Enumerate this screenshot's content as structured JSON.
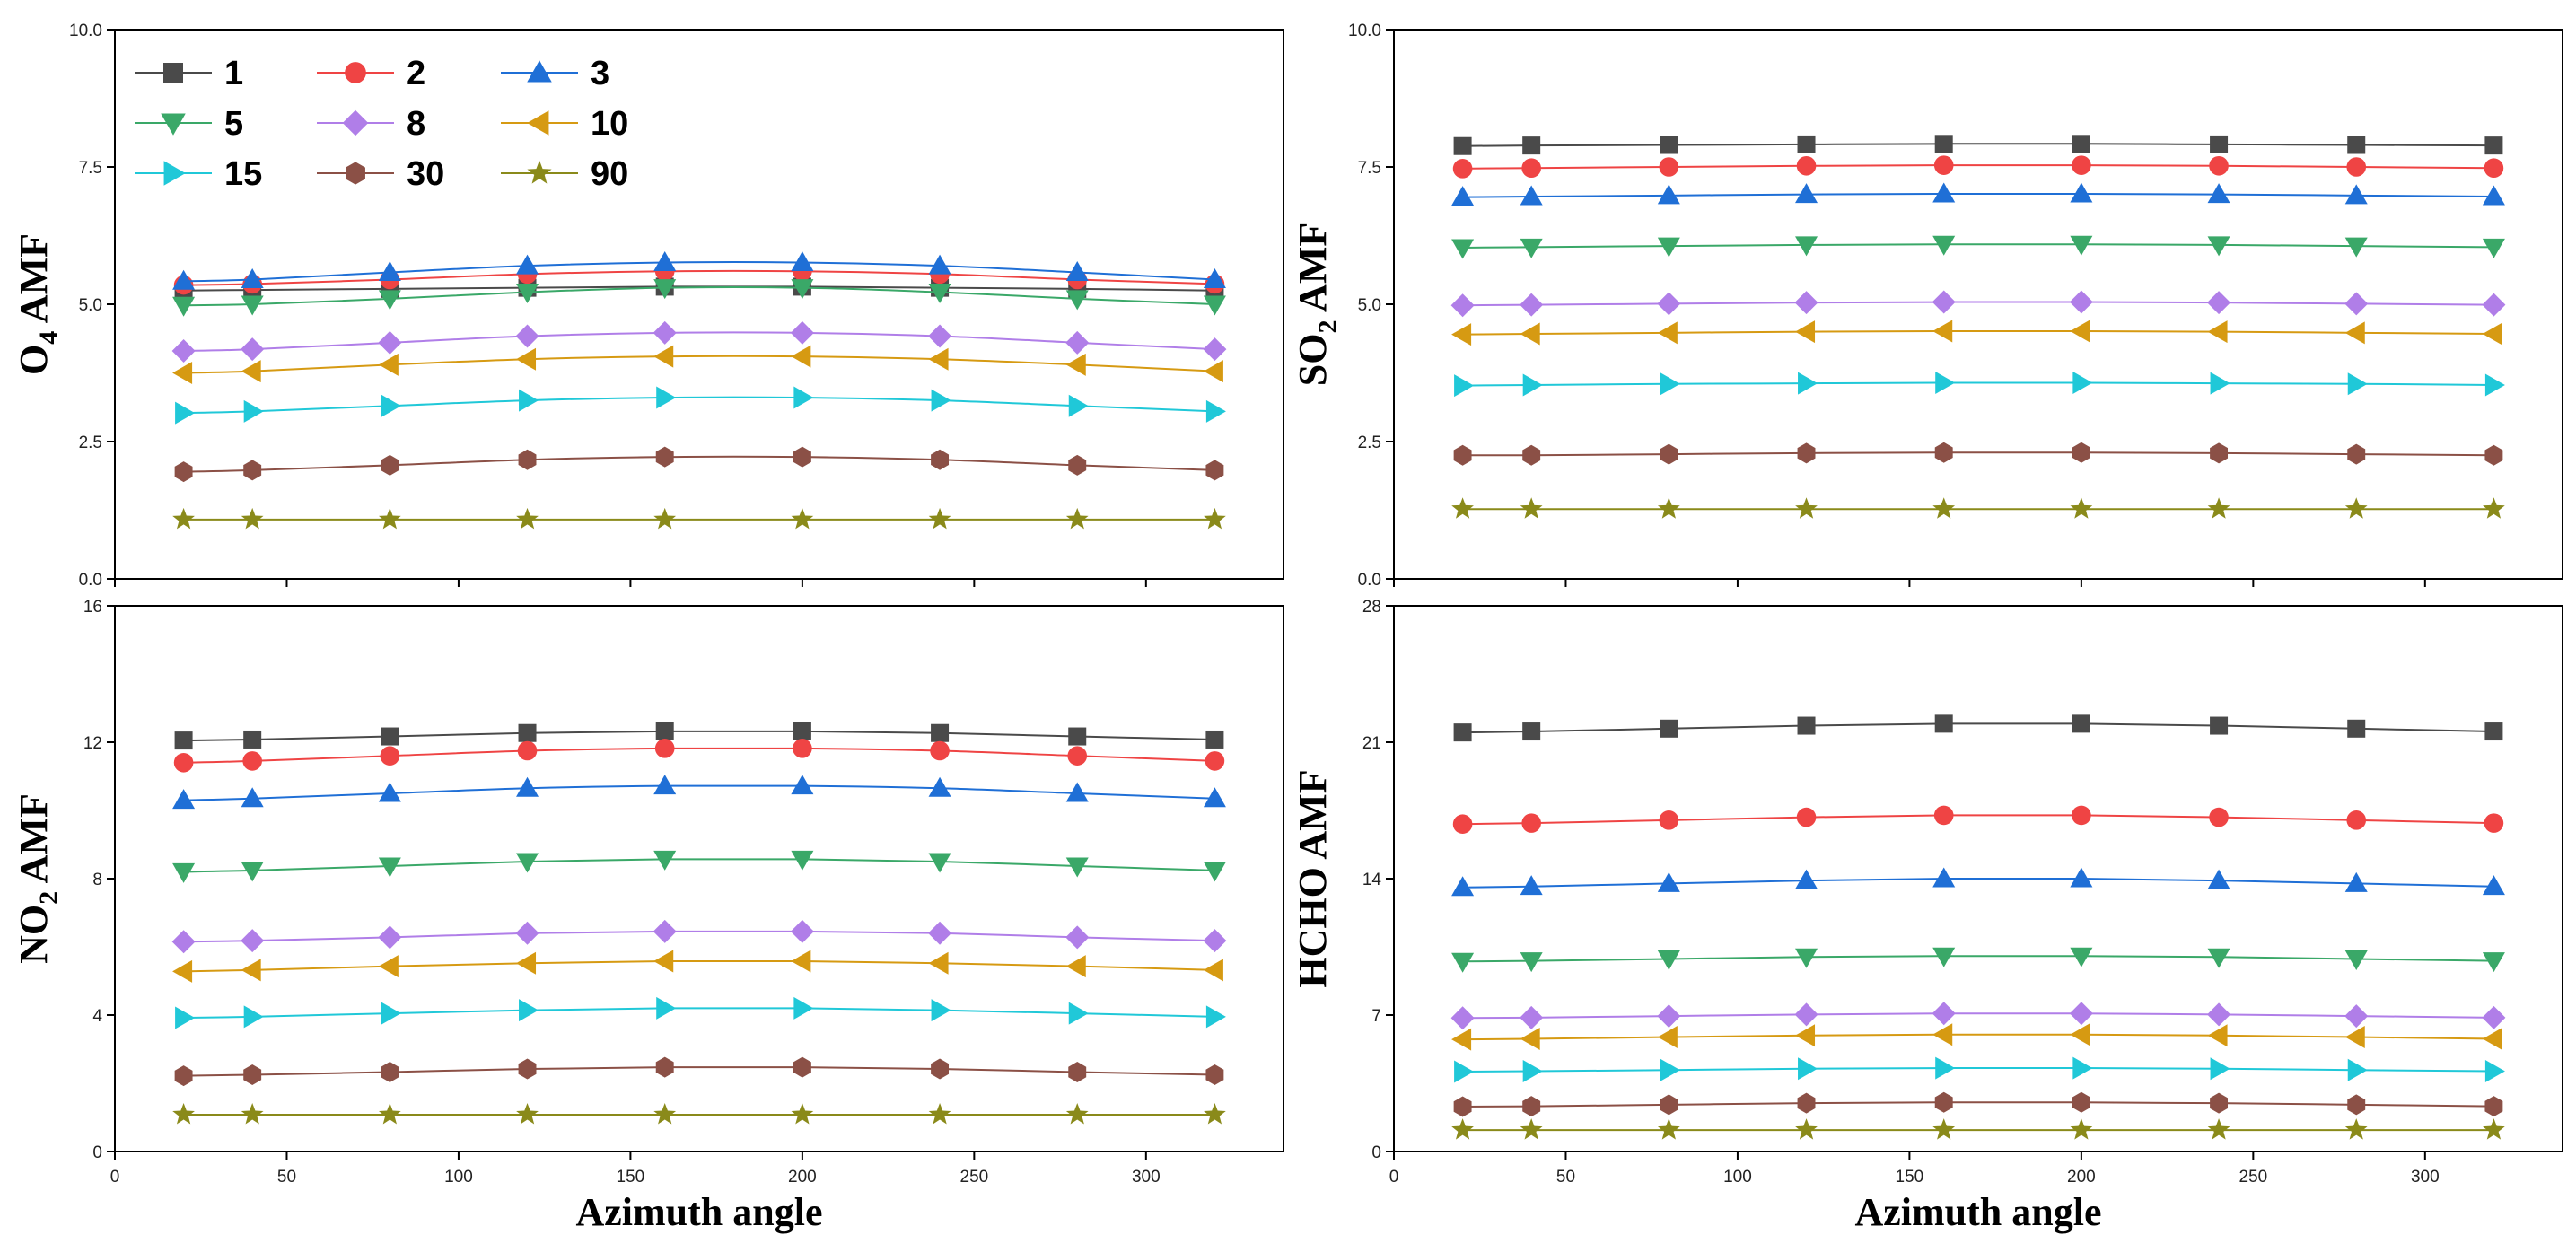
{
  "series_styles": [
    {
      "name": "1",
      "color": "#4a4a4a",
      "marker": "square"
    },
    {
      "name": "2",
      "color": "#ef4444",
      "marker": "circle"
    },
    {
      "name": "3",
      "color": "#1f6fd6",
      "marker": "triangle-up"
    },
    {
      "name": "5",
      "color": "#3aa868",
      "marker": "triangle-down"
    },
    {
      "name": "8",
      "color": "#b07ee8",
      "marker": "diamond"
    },
    {
      "name": "10",
      "color": "#d69a12",
      "marker": "triangle-left"
    },
    {
      "name": "15",
      "color": "#20c8d8",
      "marker": "triangle-right"
    },
    {
      "name": "30",
      "color": "#8b5046",
      "marker": "hexagon"
    },
    {
      "name": "90",
      "color": "#8a8a1a",
      "marker": "star"
    }
  ],
  "chart_data": [
    {
      "id": "o4",
      "type": "line",
      "ylabel_main": "O",
      "ylabel_sub": "4",
      "ylabel_rest": " AMF",
      "xlabel": "",
      "ylim": [
        0,
        10
      ],
      "yticks": [
        "0.0",
        "2.5",
        "5.0",
        "7.5",
        "10.0"
      ],
      "yticks_values": [
        0,
        2.5,
        5,
        7.5,
        10
      ],
      "xlim": [
        0,
        340
      ],
      "xticks": [
        "",
        "",
        "",
        "",
        "",
        "",
        ""
      ],
      "xticks_values": [
        0,
        50,
        100,
        150,
        200,
        250,
        300
      ],
      "x": [
        20,
        40,
        80,
        120,
        160,
        200,
        240,
        280,
        320
      ],
      "show_legend": true,
      "series": [
        {
          "name": "1",
          "values": [
            5.25,
            5.26,
            5.28,
            5.3,
            5.32,
            5.32,
            5.3,
            5.28,
            5.25
          ]
        },
        {
          "name": "2",
          "values": [
            5.35,
            5.37,
            5.45,
            5.55,
            5.6,
            5.6,
            5.55,
            5.45,
            5.37
          ]
        },
        {
          "name": "3",
          "values": [
            5.42,
            5.45,
            5.58,
            5.7,
            5.76,
            5.76,
            5.7,
            5.58,
            5.45
          ]
        },
        {
          "name": "5",
          "values": [
            4.98,
            5.0,
            5.1,
            5.22,
            5.3,
            5.3,
            5.22,
            5.1,
            5.0
          ]
        },
        {
          "name": "8",
          "values": [
            4.15,
            4.18,
            4.3,
            4.42,
            4.48,
            4.48,
            4.42,
            4.3,
            4.18
          ]
        },
        {
          "name": "10",
          "values": [
            3.75,
            3.78,
            3.9,
            4.0,
            4.05,
            4.05,
            4.0,
            3.9,
            3.78
          ]
        },
        {
          "name": "15",
          "values": [
            3.02,
            3.05,
            3.15,
            3.25,
            3.3,
            3.3,
            3.25,
            3.15,
            3.05
          ]
        },
        {
          "name": "30",
          "values": [
            1.95,
            1.98,
            2.07,
            2.17,
            2.22,
            2.22,
            2.17,
            2.07,
            1.98
          ]
        },
        {
          "name": "90",
          "values": [
            1.08,
            1.08,
            1.08,
            1.08,
            1.08,
            1.08,
            1.08,
            1.08,
            1.08
          ]
        }
      ]
    },
    {
      "id": "so2",
      "type": "line",
      "ylabel_main": "SO",
      "ylabel_sub": "2",
      "ylabel_rest": " AMF",
      "xlabel": "",
      "ylim": [
        0,
        10
      ],
      "yticks": [
        "0.0",
        "2.5",
        "5.0",
        "7.5",
        "10.0"
      ],
      "yticks_values": [
        0,
        2.5,
        5,
        7.5,
        10
      ],
      "xlim": [
        0,
        340
      ],
      "xticks": [
        "",
        "",
        "",
        "",
        "",
        "",
        ""
      ],
      "xticks_values": [
        0,
        50,
        100,
        150,
        200,
        250,
        300
      ],
      "x": [
        20,
        40,
        80,
        120,
        160,
        200,
        240,
        280,
        320
      ],
      "show_legend": false,
      "series": [
        {
          "name": "1",
          "values": [
            7.88,
            7.89,
            7.9,
            7.91,
            7.92,
            7.92,
            7.91,
            7.9,
            7.89
          ]
        },
        {
          "name": "2",
          "values": [
            7.47,
            7.48,
            7.5,
            7.52,
            7.53,
            7.53,
            7.52,
            7.5,
            7.48
          ]
        },
        {
          "name": "3",
          "values": [
            6.95,
            6.96,
            6.98,
            7.0,
            7.01,
            7.01,
            7.0,
            6.98,
            6.96
          ]
        },
        {
          "name": "5",
          "values": [
            6.03,
            6.04,
            6.06,
            6.08,
            6.09,
            6.09,
            6.08,
            6.06,
            6.04
          ]
        },
        {
          "name": "8",
          "values": [
            4.98,
            4.99,
            5.01,
            5.03,
            5.04,
            5.04,
            5.03,
            5.01,
            4.99
          ]
        },
        {
          "name": "10",
          "values": [
            4.45,
            4.46,
            4.48,
            4.5,
            4.51,
            4.51,
            4.5,
            4.48,
            4.46
          ]
        },
        {
          "name": "15",
          "values": [
            3.52,
            3.53,
            3.55,
            3.56,
            3.57,
            3.57,
            3.56,
            3.55,
            3.53
          ]
        },
        {
          "name": "30",
          "values": [
            2.25,
            2.25,
            2.27,
            2.29,
            2.3,
            2.3,
            2.29,
            2.27,
            2.25
          ]
        },
        {
          "name": "90",
          "values": [
            1.27,
            1.27,
            1.27,
            1.27,
            1.27,
            1.27,
            1.27,
            1.27,
            1.27
          ]
        }
      ]
    },
    {
      "id": "no2",
      "type": "line",
      "ylabel_main": "NO",
      "ylabel_sub": "2",
      "ylabel_rest": " AMF",
      "xlabel": "Azimuth angle",
      "ylim": [
        0,
        16
      ],
      "yticks": [
        "0",
        "4",
        "8",
        "12",
        "16"
      ],
      "yticks_values": [
        0,
        4,
        8,
        12,
        16
      ],
      "xlim": [
        0,
        340
      ],
      "xticks": [
        "0",
        "50",
        "100",
        "150",
        "200",
        "250",
        "300"
      ],
      "xticks_values": [
        0,
        50,
        100,
        150,
        200,
        250,
        300
      ],
      "x": [
        20,
        40,
        80,
        120,
        160,
        200,
        240,
        280,
        320
      ],
      "show_legend": false,
      "series": [
        {
          "name": "1",
          "values": [
            12.05,
            12.08,
            12.17,
            12.27,
            12.32,
            12.32,
            12.27,
            12.17,
            12.08
          ]
        },
        {
          "name": "2",
          "values": [
            11.4,
            11.45,
            11.6,
            11.75,
            11.82,
            11.82,
            11.75,
            11.6,
            11.45
          ]
        },
        {
          "name": "3",
          "values": [
            10.3,
            10.35,
            10.5,
            10.65,
            10.72,
            10.72,
            10.65,
            10.5,
            10.35
          ]
        },
        {
          "name": "5",
          "values": [
            8.2,
            8.24,
            8.37,
            8.5,
            8.57,
            8.57,
            8.5,
            8.37,
            8.24
          ]
        },
        {
          "name": "8",
          "values": [
            6.15,
            6.18,
            6.28,
            6.4,
            6.45,
            6.45,
            6.4,
            6.28,
            6.18
          ]
        },
        {
          "name": "10",
          "values": [
            5.28,
            5.32,
            5.43,
            5.52,
            5.58,
            5.58,
            5.52,
            5.43,
            5.32
          ]
        },
        {
          "name": "15",
          "values": [
            3.92,
            3.95,
            4.05,
            4.14,
            4.2,
            4.2,
            4.14,
            4.05,
            3.95
          ]
        },
        {
          "name": "30",
          "values": [
            2.22,
            2.25,
            2.33,
            2.42,
            2.47,
            2.47,
            2.42,
            2.33,
            2.25
          ]
        },
        {
          "name": "90",
          "values": [
            1.08,
            1.08,
            1.08,
            1.08,
            1.08,
            1.08,
            1.08,
            1.08,
            1.08
          ]
        }
      ]
    },
    {
      "id": "hcho",
      "type": "line",
      "ylabel_main": "HCHO AMF",
      "ylabel_sub": "",
      "ylabel_rest": "",
      "xlabel": "Azimuth angle",
      "ylim": [
        0,
        28
      ],
      "yticks": [
        "0",
        "7",
        "14",
        "21",
        "28"
      ],
      "yticks_values": [
        0,
        7,
        14,
        21,
        28
      ],
      "xlim": [
        0,
        340
      ],
      "xticks": [
        "0",
        "50",
        "100",
        "150",
        "200",
        "250",
        "300"
      ],
      "xticks_values": [
        0,
        50,
        100,
        150,
        200,
        250,
        300
      ],
      "x": [
        20,
        40,
        80,
        120,
        160,
        200,
        240,
        280,
        320
      ],
      "show_legend": false,
      "series": [
        {
          "name": "1",
          "values": [
            21.5,
            21.55,
            21.7,
            21.85,
            21.95,
            21.95,
            21.85,
            21.7,
            21.55
          ]
        },
        {
          "name": "2",
          "values": [
            16.8,
            16.85,
            17.0,
            17.15,
            17.25,
            17.25,
            17.15,
            17.0,
            16.85
          ]
        },
        {
          "name": "3",
          "values": [
            13.55,
            13.6,
            13.75,
            13.9,
            14.0,
            14.0,
            13.9,
            13.75,
            13.6
          ]
        },
        {
          "name": "5",
          "values": [
            9.75,
            9.78,
            9.88,
            9.98,
            10.03,
            10.03,
            9.98,
            9.88,
            9.78
          ]
        },
        {
          "name": "8",
          "values": [
            6.85,
            6.87,
            6.95,
            7.03,
            7.08,
            7.08,
            7.03,
            6.95,
            6.87
          ]
        },
        {
          "name": "10",
          "values": [
            5.75,
            5.78,
            5.87,
            5.95,
            6.0,
            6.0,
            5.95,
            5.87,
            5.78
          ]
        },
        {
          "name": "15",
          "values": [
            4.1,
            4.12,
            4.18,
            4.25,
            4.28,
            4.28,
            4.25,
            4.18,
            4.12
          ]
        },
        {
          "name": "30",
          "values": [
            2.3,
            2.32,
            2.4,
            2.48,
            2.52,
            2.52,
            2.48,
            2.4,
            2.32
          ]
        },
        {
          "name": "90",
          "values": [
            1.1,
            1.1,
            1.1,
            1.1,
            1.1,
            1.1,
            1.1,
            1.1,
            1.1
          ]
        }
      ]
    }
  ]
}
